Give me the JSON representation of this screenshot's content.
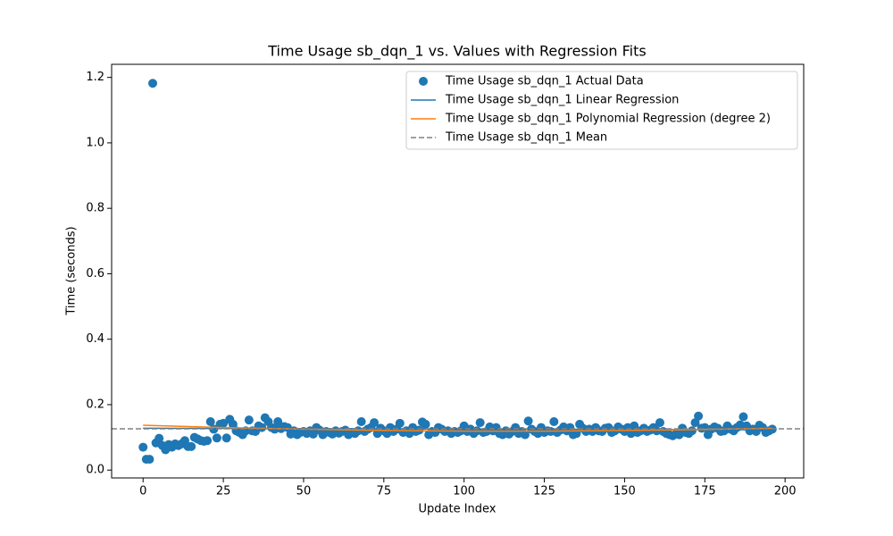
{
  "chart_data": {
    "type": "scatter",
    "title": "Time Usage sb_dqn_1 vs. Values with Regression Fits",
    "xlabel": "Update Index",
    "ylabel": "Time (seconds)",
    "xlim": [
      -9.8,
      205.8
    ],
    "ylim": [
      -0.024,
      1.24
    ],
    "xticks": [
      0,
      25,
      50,
      75,
      100,
      125,
      150,
      175,
      200
    ],
    "yticks": [
      {
        "value": 0,
        "label": "0.0"
      },
      0.2,
      0.4,
      0.6,
      0.8,
      {
        "value": 1,
        "label": "1.0"
      },
      1.2
    ],
    "legend": "upper right",
    "series": [
      {
        "name": "Time Usage sb_dqn_1 Actual Data",
        "kind": "scatter",
        "color": "#1f77b4",
        "x": [
          0,
          1,
          2,
          3,
          4,
          5,
          6,
          7,
          8,
          9,
          10,
          11,
          12,
          13,
          14,
          15,
          16,
          17,
          18,
          19,
          20,
          21,
          22,
          23,
          24,
          25,
          26,
          27,
          28,
          29,
          30,
          31,
          32,
          33,
          34,
          35,
          36,
          37,
          38,
          39,
          40,
          41,
          42,
          43,
          44,
          45,
          46,
          47,
          48,
          49,
          50,
          51,
          52,
          53,
          54,
          55,
          56,
          57,
          58,
          59,
          60,
          61,
          62,
          63,
          64,
          65,
          66,
          67,
          68,
          69,
          70,
          71,
          72,
          73,
          74,
          75,
          76,
          77,
          78,
          79,
          80,
          81,
          82,
          83,
          84,
          85,
          86,
          87,
          88,
          89,
          90,
          91,
          92,
          93,
          94,
          95,
          96,
          97,
          98,
          99,
          100,
          101,
          102,
          103,
          104,
          105,
          106,
          107,
          108,
          109,
          110,
          111,
          112,
          113,
          114,
          115,
          116,
          117,
          118,
          119,
          120,
          121,
          122,
          123,
          124,
          125,
          126,
          127,
          128,
          129,
          130,
          131,
          132,
          133,
          134,
          135,
          136,
          137,
          138,
          139,
          140,
          141,
          142,
          143,
          144,
          145,
          146,
          147,
          148,
          149,
          150,
          151,
          152,
          153,
          154,
          155,
          156,
          157,
          158,
          159,
          160,
          161,
          162,
          163,
          164,
          165,
          166,
          167,
          168,
          169,
          170,
          171,
          172,
          173,
          174,
          175,
          176,
          177,
          178,
          179,
          180,
          181,
          182,
          183,
          184,
          185,
          186,
          187,
          188,
          189,
          190,
          191,
          192,
          193,
          194,
          195,
          196
        ],
        "values": [
          0.07,
          0.033,
          0.033,
          1.182,
          0.083,
          0.097,
          0.075,
          0.062,
          0.078,
          0.07,
          0.08,
          0.075,
          0.08,
          0.09,
          0.072,
          0.072,
          0.1,
          0.095,
          0.09,
          0.088,
          0.09,
          0.148,
          0.125,
          0.098,
          0.14,
          0.143,
          0.098,
          0.155,
          0.14,
          0.12,
          0.115,
          0.108,
          0.12,
          0.153,
          0.12,
          0.118,
          0.135,
          0.13,
          0.16,
          0.148,
          0.13,
          0.125,
          0.148,
          0.127,
          0.133,
          0.13,
          0.11,
          0.12,
          0.108,
          0.115,
          0.118,
          0.112,
          0.12,
          0.11,
          0.13,
          0.122,
          0.108,
          0.118,
          0.115,
          0.11,
          0.12,
          0.113,
          0.118,
          0.122,
          0.108,
          0.115,
          0.112,
          0.12,
          0.148,
          0.118,
          0.125,
          0.13,
          0.145,
          0.112,
          0.128,
          0.12,
          0.112,
          0.13,
          0.118,
          0.125,
          0.143,
          0.115,
          0.12,
          0.112,
          0.13,
          0.118,
          0.122,
          0.147,
          0.14,
          0.108,
          0.118,
          0.115,
          0.13,
          0.125,
          0.118,
          0.12,
          0.112,
          0.118,
          0.115,
          0.12,
          0.135,
          0.118,
          0.125,
          0.112,
          0.12,
          0.145,
          0.115,
          0.118,
          0.132,
          0.12,
          0.13,
          0.112,
          0.108,
          0.12,
          0.11,
          0.118,
          0.13,
          0.112,
          0.118,
          0.108,
          0.15,
          0.125,
          0.118,
          0.112,
          0.13,
          0.115,
          0.12,
          0.118,
          0.148,
          0.115,
          0.122,
          0.132,
          0.12,
          0.13,
          0.108,
          0.112,
          0.14,
          0.128,
          0.118,
          0.125,
          0.118,
          0.13,
          0.12,
          0.118,
          0.128,
          0.13,
          0.115,
          0.12,
          0.132,
          0.125,
          0.118,
          0.13,
          0.112,
          0.135,
          0.115,
          0.12,
          0.128,
          0.118,
          0.122,
          0.13,
          0.12,
          0.145,
          0.118,
          0.112,
          0.108,
          0.105,
          0.11,
          0.108,
          0.128,
          0.115,
          0.112,
          0.12,
          0.145,
          0.165,
          0.128,
          0.13,
          0.108,
          0.125,
          0.132,
          0.128,
          0.118,
          0.12,
          0.135,
          0.125,
          0.12,
          0.13,
          0.138,
          0.163,
          0.135,
          0.12,
          0.125,
          0.118,
          0.137,
          0.13,
          0.115,
          0.12,
          0.125
        ]
      },
      {
        "name": "Time Usage sb_dqn_1 Linear Regression",
        "kind": "line",
        "color": "#1f77b4",
        "x": [
          0,
          196
        ],
        "values": [
          0.128,
          0.123
        ]
      },
      {
        "name": "Time Usage sb_dqn_1 Polynomial Regression (degree 2)",
        "kind": "line",
        "color": "#ff7f0e",
        "x": [
          0,
          25,
          50,
          75,
          100,
          125,
          150,
          175,
          196
        ],
        "values": [
          0.137,
          0.13,
          0.125,
          0.121,
          0.119,
          0.119,
          0.121,
          0.124,
          0.128
        ]
      },
      {
        "name": "Time Usage sb_dqn_1 Mean",
        "kind": "hline",
        "dash": true,
        "color": "#808080",
        "value": 0.126
      }
    ]
  }
}
